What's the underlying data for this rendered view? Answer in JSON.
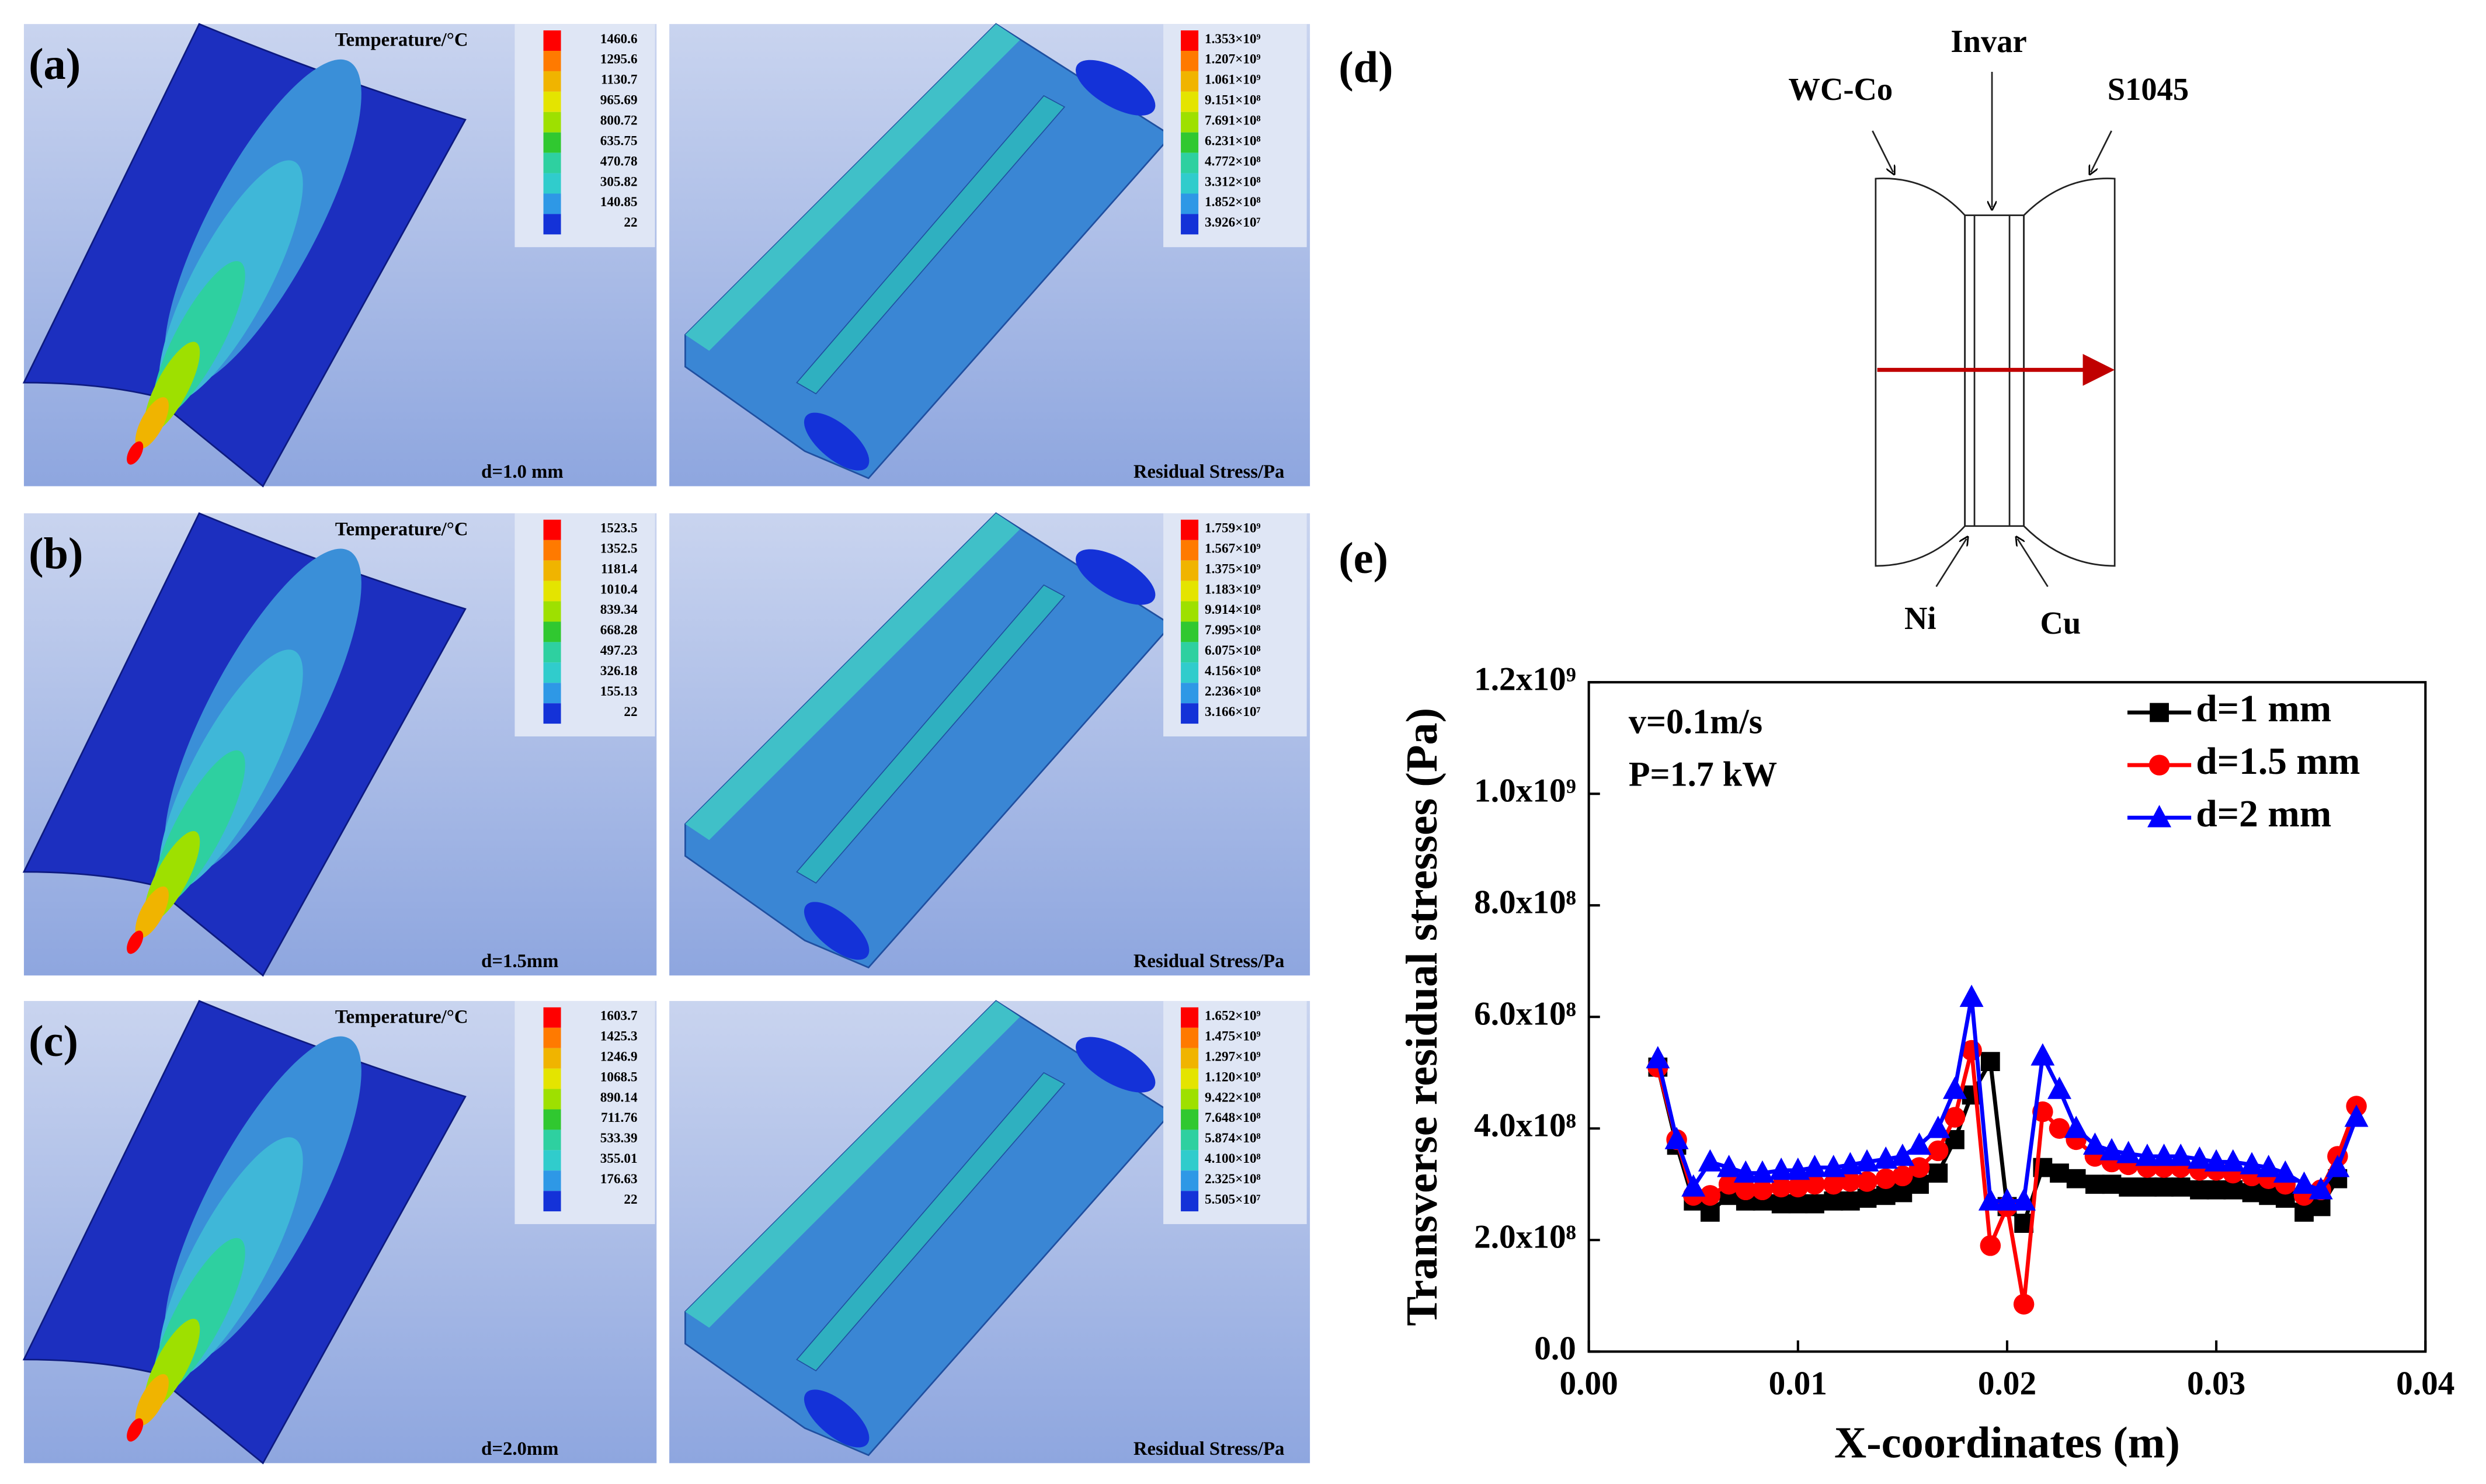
{
  "panels": [
    {
      "label": "(a)",
      "temperature_title": "Temperature/°C",
      "temperature_legend": [
        "1460.6",
        "1295.6",
        "1130.7",
        "965.69",
        "800.72",
        "635.75",
        "470.78",
        "305.82",
        "140.85",
        "22"
      ],
      "thickness": "d=1.0 mm",
      "stress_title": "Residual Stress/Pa",
      "stress_legend": [
        "1.353×10⁹",
        "1.207×10⁹",
        "1.061×10⁹",
        "9.151×10⁸",
        "7.691×10⁸",
        "6.231×10⁸",
        "4.772×10⁸",
        "3.312×10⁸",
        "1.852×10⁸",
        "3.926×10⁷"
      ]
    },
    {
      "label": "(b)",
      "temperature_title": "Temperature/°C",
      "temperature_legend": [
        "1523.5",
        "1352.5",
        "1181.4",
        "1010.4",
        "839.34",
        "668.28",
        "497.23",
        "326.18",
        "155.13",
        "22"
      ],
      "thickness": "d=1.5mm",
      "stress_title": "Residual Stress/Pa",
      "stress_legend": [
        "1.759×10⁹",
        "1.567×10⁹",
        "1.375×10⁹",
        "1.183×10⁹",
        "9.914×10⁸",
        "7.995×10⁸",
        "6.075×10⁸",
        "4.156×10⁸",
        "2.236×10⁸",
        "3.166×10⁷"
      ]
    },
    {
      "label": "(c)",
      "temperature_title": "Temperature/°C",
      "temperature_legend": [
        "1603.7",
        "1425.3",
        "1246.9",
        "1068.5",
        "890.14",
        "711.76",
        "533.39",
        "355.01",
        "176.63",
        "22"
      ],
      "thickness": "d=2.0mm",
      "stress_title": "Residual Stress/Pa",
      "stress_legend": [
        "1.652×10⁹",
        "1.475×10⁹",
        "1.297×10⁹",
        "1.120×10⁹",
        "9.422×10⁸",
        "7.648×10⁸",
        "5.874×10⁸",
        "4.100×10⁸",
        "2.325×10⁸",
        "5.505×10⁷"
      ]
    }
  ],
  "diagram": {
    "label": "(d)",
    "left": "WC-Co",
    "middle": "Invar",
    "right": "S1045",
    "bottom_left": "Ni",
    "bottom_right": "Cu"
  },
  "chart_data": {
    "type": "line",
    "label": "(e)",
    "xlabel": "X-coordinates (m)",
    "ylabel": "Transverse residual stresses (Pa)",
    "annotations": [
      "v=0.1m/s",
      "P=1.7 kW"
    ],
    "xlim": [
      0,
      0.04
    ],
    "ylim": [
      0,
      1200000000.0
    ],
    "xticks": [
      {
        "value": 0,
        "label": "0.00"
      },
      0.01,
      0.02,
      0.03,
      0.04
    ],
    "yticks": [
      {
        "value": 0,
        "label": "0.0"
      },
      {
        "value": 200000000.0,
        "label": "2.0x10⁸"
      },
      {
        "value": 400000000.0,
        "label": "4.0x10⁸"
      },
      {
        "value": 600000000.0,
        "label": "6.0x10⁸"
      },
      {
        "value": 800000000.0,
        "label": "8.0x10⁸"
      },
      {
        "value": 1000000000.0,
        "label": "1.0x10⁹"
      },
      {
        "value": 1200000000.0,
        "label": "1.2x10⁹"
      }
    ],
    "legend": "upper right",
    "x": [
      0.0033,
      0.0042,
      0.005,
      0.0058,
      0.0067,
      0.0075,
      0.0083,
      0.0092,
      0.01,
      0.0108,
      0.0117,
      0.0125,
      0.0133,
      0.0142,
      0.015,
      0.0158,
      0.0167,
      0.0175,
      0.0183,
      0.0192,
      0.02,
      0.0208,
      0.0217,
      0.0225,
      0.0233,
      0.0242,
      0.025,
      0.0258,
      0.0267,
      0.0275,
      0.0283,
      0.0292,
      0.03,
      0.0308,
      0.0317,
      0.0325,
      0.0333,
      0.0342,
      0.035,
      0.0358,
      0.0367
    ],
    "series": [
      {
        "name": "d=1 mm",
        "color": "#000000",
        "marker": "square",
        "values": [
          510000000.0,
          370000000.0,
          270000000.0,
          250000000.0,
          280000000.0,
          270000000.0,
          270000000.0,
          265000000.0,
          265000000.0,
          265000000.0,
          270000000.0,
          270000000.0,
          275000000.0,
          280000000.0,
          285000000.0,
          300000000.0,
          320000000.0,
          380000000.0,
          460000000.0,
          520000000.0,
          260000000.0,
          230000000.0,
          330000000.0,
          320000000.0,
          310000000.0,
          300000000.0,
          300000000.0,
          295000000.0,
          295000000.0,
          295000000.0,
          295000000.0,
          290000000.0,
          290000000.0,
          290000000.0,
          285000000.0,
          280000000.0,
          275000000.0,
          250000000.0,
          260000000.0,
          310000000.0,
          null
        ]
      },
      {
        "name": "d=1.5 mm",
        "color": "#ff0000",
        "marker": "circle",
        "values": [
          510000000.0,
          380000000.0,
          280000000.0,
          280000000.0,
          300000000.0,
          290000000.0,
          290000000.0,
          295000000.0,
          295000000.0,
          300000000.0,
          300000000.0,
          305000000.0,
          305000000.0,
          310000000.0,
          315000000.0,
          330000000.0,
          360000000.0,
          420000000.0,
          540000000.0,
          190000000.0,
          260000000.0,
          85000000.0,
          430000000.0,
          400000000.0,
          380000000.0,
          350000000.0,
          340000000.0,
          335000000.0,
          330000000.0,
          330000000.0,
          330000000.0,
          325000000.0,
          325000000.0,
          320000000.0,
          315000000.0,
          310000000.0,
          300000000.0,
          280000000.0,
          290000000.0,
          350000000.0,
          440000000.0
        ]
      },
      {
        "name": "d=2 mm",
        "color": "#0000ff",
        "marker": "triangle",
        "values": [
          525000000.0,
          380000000.0,
          295000000.0,
          340000000.0,
          330000000.0,
          320000000.0,
          320000000.0,
          325000000.0,
          325000000.0,
          330000000.0,
          330000000.0,
          335000000.0,
          340000000.0,
          345000000.0,
          350000000.0,
          370000000.0,
          400000000.0,
          470000000.0,
          635000000.0,
          270000000.0,
          270000000.0,
          270000000.0,
          530000000.0,
          470000000.0,
          400000000.0,
          370000000.0,
          360000000.0,
          355000000.0,
          350000000.0,
          350000000.0,
          350000000.0,
          345000000.0,
          340000000.0,
          340000000.0,
          335000000.0,
          330000000.0,
          320000000.0,
          300000000.0,
          290000000.0,
          330000000.0,
          420000000.0
        ]
      }
    ]
  }
}
